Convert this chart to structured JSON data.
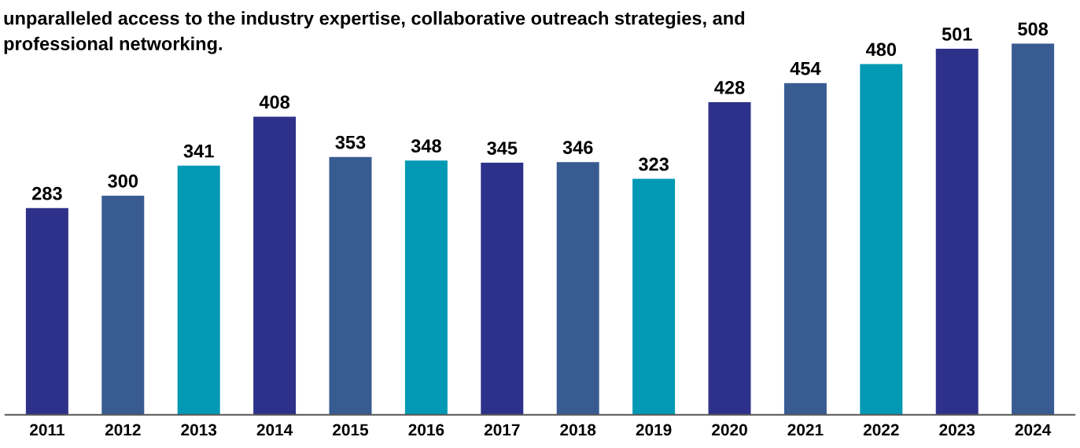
{
  "chart_data": {
    "type": "bar",
    "title": "unparalleled access to the industry expertise, collaborative outreach strategies, and\nprofessional networking.",
    "categories": [
      "2011",
      "2012",
      "2013",
      "2014",
      "2015",
      "2016",
      "2017",
      "2018",
      "2019",
      "2020",
      "2021",
      "2022",
      "2023",
      "2024"
    ],
    "values": [
      283,
      300,
      341,
      408,
      353,
      348,
      345,
      346,
      323,
      428,
      454,
      480,
      501,
      508
    ],
    "colors": [
      "#2e3189",
      "#385b92",
      "#0199b4",
      "#2e3189",
      "#385b92",
      "#0199b4",
      "#2e3189",
      "#385b92",
      "#0199b4",
      "#2e3189",
      "#385b92",
      "#0199b4",
      "#2e3189",
      "#385b92"
    ],
    "tick_labels": "x",
    "data_labels": true,
    "grid": false,
    "legend": false
  }
}
